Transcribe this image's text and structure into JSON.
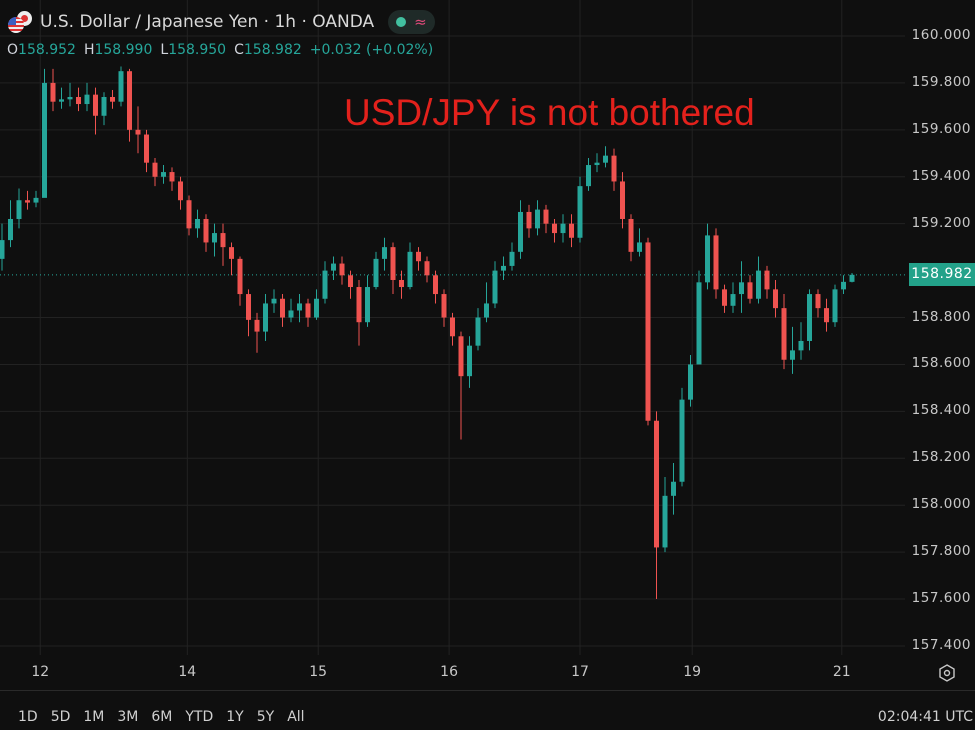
{
  "header": {
    "title": "U.S. Dollar / Japanese Yen · 1h · OANDA",
    "open_label": "O",
    "open": "158.952",
    "high_label": "H",
    "high": "158.990",
    "low_label": "L",
    "low": "158.950",
    "close_label": "C",
    "close": "158.982",
    "change": "+0.032 (+0.02%)",
    "market_status_icon": "green-dot-icon",
    "indicator_icon": "wave-icon"
  },
  "annotation": "USD/JPY is not bothered",
  "colors": {
    "up": "#26a69a",
    "down": "#ef5350",
    "annotation": "#e3211c",
    "current_price_bg": "#23a28a",
    "background": "#0f0f0f",
    "grid": "#222222"
  },
  "chart_data": {
    "type": "candlestick",
    "title": "U.S. Dollar / Japanese Yen · 1h · OANDA",
    "interval": "1h",
    "ylim": [
      157.35,
      160.05
    ],
    "y_ticks": [
      "160.000",
      "159.800",
      "159.600",
      "159.400",
      "159.200",
      "158.800",
      "158.600",
      "158.400",
      "158.200",
      "158.000",
      "157.800",
      "157.600",
      "157.400"
    ],
    "x_ticks": [
      {
        "label": "12",
        "index": 4.5
      },
      {
        "label": "14",
        "index": 21.8
      },
      {
        "label": "15",
        "index": 37.2
      },
      {
        "label": "16",
        "index": 52.6
      },
      {
        "label": "17",
        "index": 68
      },
      {
        "label": "19",
        "index": 81.2
      },
      {
        "label": "21",
        "index": 98.8
      }
    ],
    "current_price": "158.982",
    "grid": true,
    "first_open": 159.05,
    "close": [
      159.13,
      159.22,
      159.3,
      159.29,
      159.31,
      159.8,
      159.72,
      159.73,
      159.74,
      159.71,
      159.75,
      159.66,
      159.74,
      159.72,
      159.85,
      159.6,
      159.58,
      159.46,
      159.4,
      159.42,
      159.38,
      159.3,
      159.18,
      159.22,
      159.12,
      159.16,
      159.1,
      159.05,
      158.9,
      158.79,
      158.74,
      158.86,
      158.88,
      158.8,
      158.83,
      158.86,
      158.8,
      158.88,
      159.0,
      159.03,
      158.98,
      158.93,
      158.78,
      158.93,
      159.05,
      159.1,
      158.96,
      158.93,
      159.08,
      159.04,
      158.98,
      158.9,
      158.8,
      158.72,
      158.55,
      158.68,
      158.8,
      158.86,
      159.0,
      159.02,
      159.08,
      159.25,
      159.18,
      159.26,
      159.2,
      159.16,
      159.2,
      159.14,
      159.36,
      159.45,
      159.46,
      159.49,
      159.38,
      159.22,
      159.08,
      159.12,
      158.36,
      157.82,
      158.04,
      158.1,
      158.45,
      158.6,
      158.95,
      159.15,
      158.92,
      158.85,
      158.9,
      158.95,
      158.88,
      159.0,
      158.92,
      158.84,
      158.62,
      158.66,
      158.7,
      158.9,
      158.84,
      158.78,
      158.92,
      158.952,
      158.982
    ],
    "high": [
      159.2,
      159.3,
      159.35,
      159.34,
      159.34,
      159.86,
      159.86,
      159.78,
      159.8,
      159.78,
      159.8,
      159.78,
      159.76,
      159.77,
      159.87,
      159.86,
      159.7,
      159.6,
      159.48,
      159.45,
      159.44,
      159.4,
      159.32,
      159.26,
      159.24,
      159.2,
      159.2,
      159.12,
      159.06,
      158.92,
      158.82,
      158.9,
      158.92,
      158.9,
      158.88,
      158.9,
      158.88,
      158.92,
      159.04,
      159.06,
      159.06,
      159.0,
      158.96,
      158.98,
      159.08,
      159.14,
      159.12,
      159.0,
      159.12,
      159.1,
      159.06,
      159.0,
      158.92,
      158.82,
      158.74,
      158.72,
      158.84,
      158.95,
      159.04,
      159.06,
      159.12,
      159.3,
      159.28,
      159.3,
      159.28,
      159.22,
      159.24,
      159.24,
      159.4,
      159.48,
      159.5,
      159.53,
      159.52,
      159.42,
      159.24,
      159.18,
      159.14,
      158.4,
      158.12,
      158.18,
      158.5,
      158.64,
      159.0,
      159.2,
      159.18,
      158.94,
      158.95,
      159.04,
      158.98,
      159.06,
      159.02,
      158.96,
      158.9,
      158.76,
      158.78,
      158.92,
      158.92,
      158.88,
      158.94,
      158.98,
      158.99
    ],
    "low": [
      159.0,
      159.1,
      159.18,
      159.26,
      159.27,
      159.55,
      159.68,
      159.69,
      159.7,
      159.68,
      159.68,
      159.58,
      159.62,
      159.69,
      159.7,
      159.55,
      159.5,
      159.42,
      159.36,
      159.37,
      159.34,
      159.26,
      159.15,
      159.14,
      159.08,
      159.06,
      159.02,
      158.98,
      158.85,
      158.72,
      158.65,
      158.7,
      158.82,
      158.76,
      158.78,
      158.78,
      158.76,
      158.79,
      158.86,
      158.96,
      158.94,
      158.88,
      158.68,
      158.76,
      158.92,
      159.0,
      158.9,
      158.88,
      158.92,
      159.0,
      158.95,
      158.86,
      158.76,
      158.68,
      158.28,
      158.5,
      158.66,
      158.78,
      158.84,
      158.96,
      159.0,
      159.05,
      159.14,
      159.15,
      159.16,
      159.12,
      159.12,
      159.1,
      159.12,
      159.34,
      159.42,
      159.44,
      159.34,
      159.18,
      159.04,
      159.06,
      158.34,
      157.6,
      157.8,
      157.96,
      158.08,
      158.42,
      158.78,
      158.92,
      158.88,
      158.82,
      158.82,
      158.82,
      158.86,
      158.86,
      158.88,
      158.8,
      158.58,
      158.56,
      158.62,
      158.66,
      158.8,
      158.74,
      158.76,
      158.9,
      158.95
    ]
  },
  "time_axis": {
    "settings_icon": "gear-icon"
  },
  "footer": {
    "ranges": [
      "1D",
      "5D",
      "1M",
      "3M",
      "6M",
      "YTD",
      "1Y",
      "5Y",
      "All"
    ],
    "clock": "02:04:41 UTC"
  }
}
